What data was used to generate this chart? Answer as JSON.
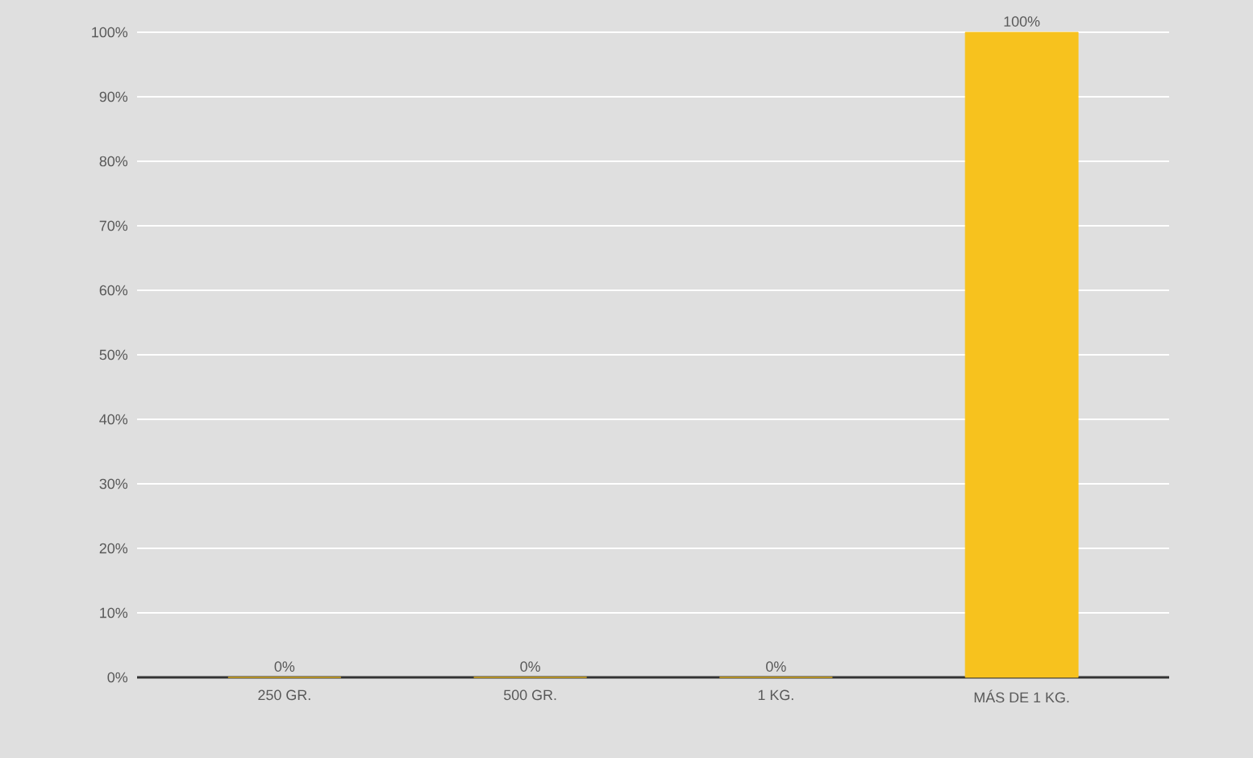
{
  "chart_data": {
    "type": "bar",
    "categories": [
      "250 GR.",
      "500 GR.",
      "1 KG.",
      "MÁS DE 1 KG."
    ],
    "values": [
      0,
      0,
      0,
      100
    ],
    "color": "#f7c21e",
    "value_labels": [
      "0%",
      "0%",
      "0%",
      "100%"
    ],
    "ylim": [
      0,
      100
    ],
    "yticks": [
      {
        "value": 0,
        "label": "0%"
      },
      {
        "value": 10,
        "label": "10%"
      },
      {
        "value": 20,
        "label": "20%"
      },
      {
        "value": 30,
        "label": "30%"
      },
      {
        "value": 40,
        "label": "40%"
      },
      {
        "value": 50,
        "label": "50%"
      },
      {
        "value": 60,
        "label": "60%"
      },
      {
        "value": 70,
        "label": "70%"
      },
      {
        "value": 80,
        "label": "80%"
      },
      {
        "value": 90,
        "label": "90%"
      },
      {
        "value": 100,
        "label": "100%"
      }
    ],
    "grid": "y"
  }
}
